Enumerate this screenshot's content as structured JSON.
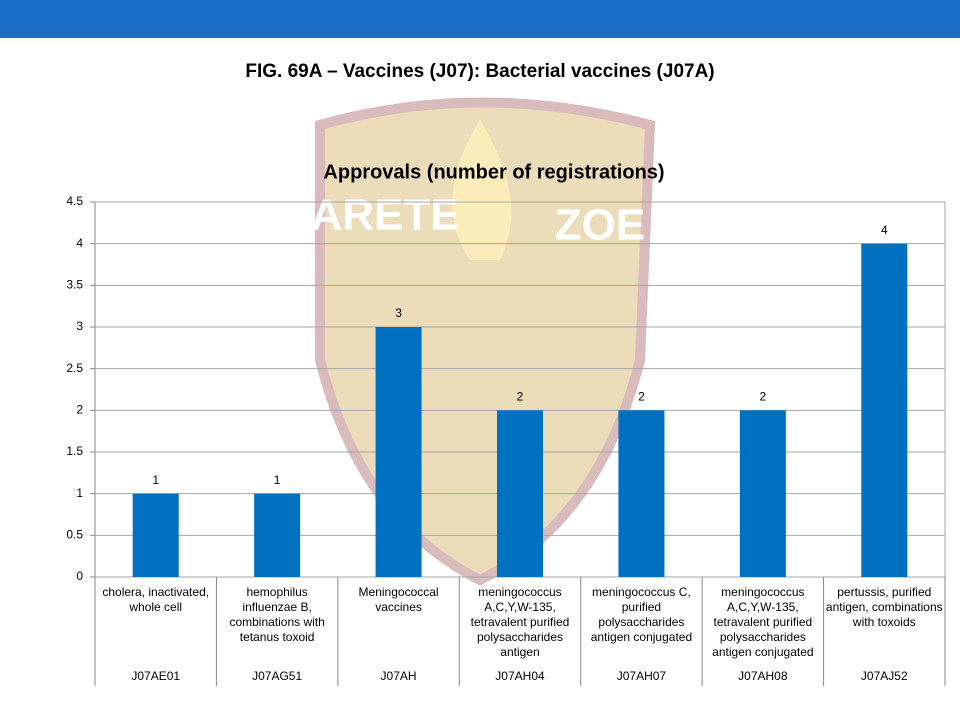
{
  "header": {
    "title": "FIG. 69A – Vaccines (J07): Bacterial vaccines (J07A)"
  },
  "watermark": [
    "ARETE",
    "ZOE"
  ],
  "chart_data": {
    "type": "bar",
    "title": "Approvals (number of registrations)",
    "categories": [
      "cholera, inactivated, whole cell",
      "hemophilus influenzae B, combinations with tetanus toxoid",
      "Meningococcal vaccines",
      "meningococcus A,C,Y,W-135, tetravalent purified polysaccharides antigen",
      "meningococcus C, purified polysaccharides antigen conjugated",
      "meningococcus A,C,Y,W-135, tetravalent purified polysaccharides antigen conjugated",
      "pertussis, purified antigen, combinations with toxoids"
    ],
    "codes": [
      "J07AE01",
      "J07AG51",
      "J07AH",
      "J07AH04",
      "J07AH07",
      "J07AH08",
      "J07AJ52"
    ],
    "values": [
      1,
      1,
      3,
      2,
      2,
      2,
      4
    ],
    "color": "#0070c0",
    "ylim": [
      0,
      4.5
    ],
    "yticks": [
      0,
      0.5,
      1,
      1.5,
      2,
      2.5,
      3,
      3.5,
      4,
      4.5
    ],
    "grid": true
  }
}
